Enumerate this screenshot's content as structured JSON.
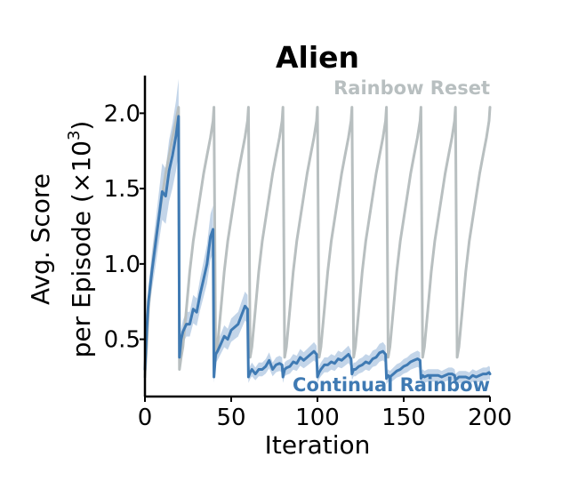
{
  "chart_data": {
    "type": "line",
    "title": "Alien",
    "xlabel": "Iteration",
    "ylabel_line1": "Avg. Score",
    "ylabel_line2_prefix": "per Episode (×10",
    "ylabel_exponent": "3",
    "ylabel_line2_suffix": ")",
    "xlim": [
      0,
      200
    ],
    "ylim": [
      0.12,
      2.25
    ],
    "xticks": [
      0,
      50,
      100,
      150,
      200
    ],
    "xtick_labels": [
      "0",
      "50",
      "100",
      "150",
      "200"
    ],
    "yticks": [
      0.5,
      1.0,
      1.5,
      2.0
    ],
    "ytick_labels": [
      "0.5",
      "1.0",
      "1.5",
      "2.0"
    ],
    "grid": false,
    "legend_placement": "inline: top-right and bottom-right",
    "series": [
      {
        "name": "Rainbow Reset",
        "color": "#b8bfc0",
        "x": [
          0,
          1,
          2,
          4,
          6,
          8,
          10,
          12,
          14,
          16,
          18,
          19.5,
          20,
          21,
          22,
          24,
          26,
          28,
          30,
          32,
          34,
          36,
          38,
          39.5,
          40,
          41,
          42,
          44,
          46,
          48,
          50,
          52,
          54,
          56,
          58,
          59.5,
          60,
          61,
          62,
          64,
          66,
          68,
          70,
          72,
          74,
          76,
          78,
          79.5,
          80,
          81,
          82,
          84,
          86,
          88,
          90,
          92,
          94,
          96,
          98,
          99.5,
          100,
          101,
          102,
          104,
          106,
          108,
          110,
          112,
          114,
          116,
          118,
          119.5,
          120,
          121,
          122,
          124,
          126,
          128,
          130,
          132,
          134,
          136,
          138,
          139.5,
          140,
          141,
          142,
          144,
          146,
          148,
          150,
          152,
          154,
          156,
          158,
          159.5,
          160,
          161,
          162,
          164,
          166,
          168,
          170,
          172,
          174,
          176,
          178,
          179.5,
          180,
          181,
          182,
          184,
          186,
          188,
          190,
          192,
          194,
          196,
          198,
          199.5,
          200
        ],
        "y": [
          0.25,
          0.45,
          0.7,
          0.95,
          1.15,
          1.3,
          1.45,
          1.6,
          1.72,
          1.84,
          1.95,
          2.04,
          0.3,
          0.38,
          0.45,
          0.7,
          0.95,
          1.15,
          1.3,
          1.45,
          1.6,
          1.72,
          1.84,
          1.95,
          2.04,
          0.38,
          0.45,
          0.7,
          0.95,
          1.15,
          1.3,
          1.45,
          1.6,
          1.72,
          1.84,
          1.95,
          2.04,
          0.38,
          0.45,
          0.7,
          0.95,
          1.15,
          1.3,
          1.45,
          1.6,
          1.72,
          1.84,
          1.95,
          2.04,
          0.38,
          0.45,
          0.7,
          0.95,
          1.15,
          1.3,
          1.45,
          1.6,
          1.72,
          1.84,
          1.95,
          2.04,
          0.38,
          0.45,
          0.7,
          0.95,
          1.15,
          1.3,
          1.45,
          1.6,
          1.72,
          1.84,
          1.95,
          2.04,
          0.38,
          0.45,
          0.7,
          0.95,
          1.15,
          1.3,
          1.45,
          1.6,
          1.72,
          1.84,
          1.95,
          2.04,
          0.38,
          0.45,
          0.7,
          0.95,
          1.15,
          1.3,
          1.45,
          1.6,
          1.72,
          1.84,
          1.95,
          2.04,
          0.38,
          0.45,
          0.7,
          0.95,
          1.15,
          1.3,
          1.45,
          1.6,
          1.72,
          1.84,
          1.95,
          2.04,
          0.38,
          0.45,
          0.7,
          0.95,
          1.15,
          1.3,
          1.45,
          1.6,
          1.72,
          1.84,
          1.95,
          2.04
        ]
      },
      {
        "name": "Continual Rainbow",
        "color": "#3f7ab3",
        "band_color": "#a9c3e0",
        "x": [
          0,
          1,
          2,
          4,
          6,
          8,
          10,
          12,
          14,
          16,
          18,
          19.5,
          20,
          21,
          22,
          24,
          26,
          28,
          30,
          32,
          34,
          36,
          38,
          39.5,
          40,
          41,
          42,
          44,
          46,
          48,
          50,
          52,
          54,
          56,
          58,
          59.5,
          60,
          61,
          62,
          64,
          66,
          68,
          70,
          72,
          74,
          76,
          78,
          79.5,
          80,
          81,
          82,
          84,
          86,
          88,
          90,
          92,
          94,
          96,
          98,
          99.5,
          100,
          101,
          102,
          104,
          106,
          108,
          110,
          112,
          114,
          116,
          118,
          119.5,
          120,
          121,
          122,
          124,
          126,
          128,
          130,
          132,
          134,
          136,
          138,
          139.5,
          140,
          141,
          142,
          144,
          146,
          148,
          150,
          152,
          154,
          156,
          158,
          159.5,
          160,
          161,
          162,
          164,
          166,
          168,
          170,
          172,
          174,
          176,
          178,
          179.5,
          180,
          181,
          182,
          184,
          186,
          188,
          190,
          192,
          194,
          196,
          198,
          199.5,
          200
        ],
        "y": [
          0.3,
          0.55,
          0.75,
          0.95,
          1.12,
          1.3,
          1.48,
          1.45,
          1.62,
          1.72,
          1.85,
          1.98,
          0.38,
          0.5,
          0.55,
          0.6,
          0.6,
          0.7,
          0.68,
          0.8,
          0.9,
          1.0,
          1.18,
          1.23,
          0.25,
          0.4,
          0.42,
          0.47,
          0.52,
          0.5,
          0.56,
          0.58,
          0.6,
          0.66,
          0.72,
          0.7,
          0.25,
          0.28,
          0.3,
          0.27,
          0.3,
          0.3,
          0.32,
          0.36,
          0.3,
          0.33,
          0.34,
          0.33,
          0.25,
          0.3,
          0.31,
          0.32,
          0.35,
          0.34,
          0.38,
          0.36,
          0.38,
          0.4,
          0.42,
          0.4,
          0.25,
          0.28,
          0.3,
          0.33,
          0.33,
          0.35,
          0.34,
          0.37,
          0.36,
          0.38,
          0.4,
          0.37,
          0.27,
          0.3,
          0.3,
          0.32,
          0.33,
          0.35,
          0.34,
          0.37,
          0.38,
          0.41,
          0.42,
          0.4,
          0.24,
          0.26,
          0.25,
          0.27,
          0.29,
          0.3,
          0.32,
          0.33,
          0.35,
          0.36,
          0.37,
          0.36,
          0.24,
          0.26,
          0.25,
          0.26,
          0.26,
          0.26,
          0.26,
          0.25,
          0.26,
          0.27,
          0.27,
          0.26,
          0.23,
          0.24,
          0.25,
          0.25,
          0.25,
          0.24,
          0.26,
          0.25,
          0.26,
          0.27,
          0.27,
          0.28,
          0.27
        ]
      }
    ]
  }
}
